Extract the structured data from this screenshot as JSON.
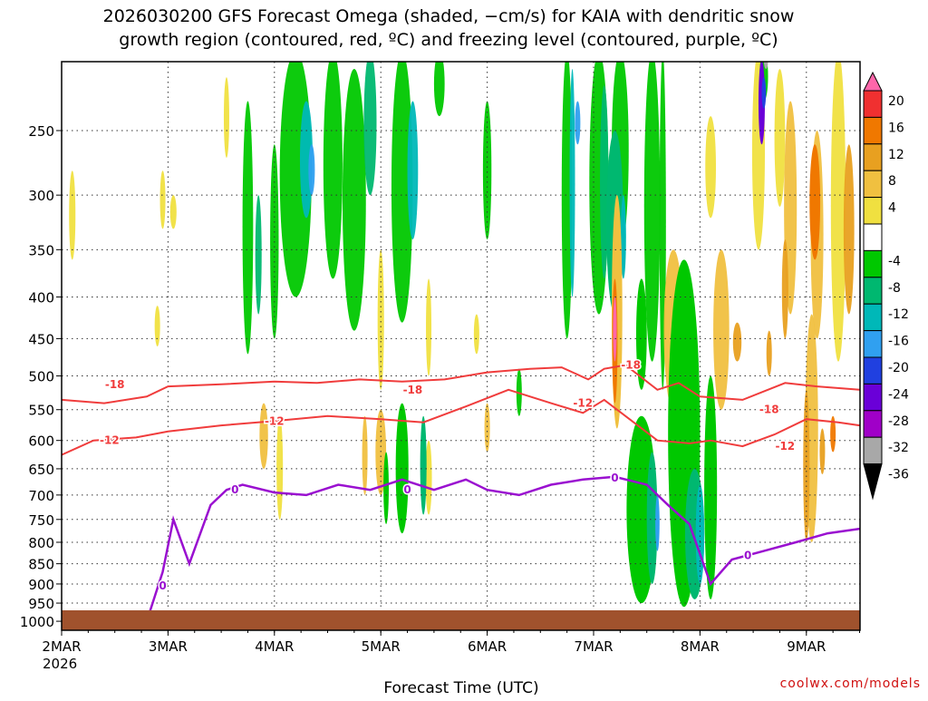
{
  "chart_data": {
    "type": "heatmap",
    "title_lines": [
      "2026030200 GFS Forecast Omega (shaded, −cm/s) for KAIA with dendritic snow",
      "growth region (contoured, red, ºC) and freezing level (contoured, purple, ºC)"
    ],
    "xlabel": "Forecast Time (UTC)",
    "credit": "coolwx.com/models",
    "x_ticks": [
      "2MAR",
      "3MAR",
      "4MAR",
      "5MAR",
      "6MAR",
      "7MAR",
      "8MAR",
      "9MAR"
    ],
    "x_year": "2026",
    "x_range_days": [
      0,
      7.5
    ],
    "y_ticks": [
      250,
      300,
      350,
      400,
      450,
      500,
      550,
      600,
      650,
      700,
      750,
      800,
      850,
      900,
      950,
      1000
    ],
    "y_range_hpa": [
      200,
      1050
    ],
    "y_scale": "log-pressure",
    "grid": true,
    "colorbar": {
      "labels": [
        20,
        16,
        12,
        8,
        4,
        -4,
        -8,
        -12,
        -16,
        -20,
        -24,
        -28,
        -32,
        -36
      ],
      "colors": [
        "#ff66aa",
        "#f03030",
        "#f07800",
        "#e8a020",
        "#f0c040",
        "#f0e040",
        "#ffffff",
        "#00c800",
        "#00b870",
        "#00b8b8",
        "#30a0f0",
        "#2040e0",
        "#6a00d8",
        "#a000c8",
        "#a8a8a8",
        "#000000"
      ]
    },
    "terrain_color": "#a0522d",
    "contours": [
      {
        "name": "-18",
        "color": "#f03c3c",
        "label": "-18",
        "x_days": [
          0,
          0.4,
          0.8,
          1.0,
          1.5,
          2.0,
          2.4,
          2.8,
          3.2,
          3.6,
          4.0,
          4.4,
          4.7,
          4.95,
          5.1,
          5.3,
          5.6,
          5.8,
          6.0,
          6.4,
          6.8,
          7.1,
          7.5
        ],
        "p_hpa": [
          535,
          540,
          530,
          515,
          512,
          508,
          510,
          505,
          508,
          505,
          495,
          490,
          488,
          505,
          490,
          485,
          520,
          510,
          530,
          535,
          510,
          515,
          520
        ],
        "label_at": [
          [
            0.5,
            512
          ],
          [
            3.3,
            520
          ],
          [
            5.35,
            485
          ],
          [
            6.65,
            550
          ]
        ]
      },
      {
        "name": "-12",
        "color": "#f03c3c",
        "label": "-12",
        "x_days": [
          0,
          0.3,
          0.7,
          1.0,
          1.5,
          2.0,
          2.5,
          3.0,
          3.4,
          3.8,
          4.2,
          4.6,
          4.9,
          5.1,
          5.3,
          5.6,
          5.9,
          6.1,
          6.4,
          6.7,
          7.0,
          7.3,
          7.5
        ],
        "p_hpa": [
          625,
          600,
          595,
          585,
          575,
          568,
          560,
          565,
          570,
          545,
          520,
          540,
          555,
          535,
          560,
          600,
          605,
          600,
          610,
          590,
          565,
          570,
          575
        ],
        "label_at": [
          [
            0.45,
            600
          ],
          [
            2.0,
            568
          ],
          [
            4.9,
            540
          ],
          [
            6.8,
            610
          ]
        ]
      },
      {
        "name": "0",
        "color": "#9a10d0",
        "label": "0",
        "x_days": [
          0.8,
          0.95,
          1.05,
          1.2,
          1.4,
          1.55,
          1.7,
          2.0,
          2.3,
          2.6,
          2.9,
          3.2,
          3.5,
          3.8,
          4.0,
          4.3,
          4.6,
          4.9,
          5.2,
          5.5,
          5.7,
          5.9,
          6.1,
          6.3,
          6.6,
          6.9,
          7.2,
          7.5
        ],
        "p_hpa": [
          1000,
          870,
          750,
          850,
          720,
          690,
          680,
          695,
          700,
          680,
          690,
          670,
          690,
          670,
          690,
          700,
          680,
          670,
          665,
          680,
          720,
          760,
          900,
          840,
          820,
          800,
          780,
          770
        ],
        "label_at": [
          [
            1.63,
            690
          ],
          [
            3.25,
            690
          ],
          [
            5.2,
            667
          ],
          [
            6.45,
            830
          ],
          [
            0.95,
            905
          ]
        ]
      }
    ]
  }
}
